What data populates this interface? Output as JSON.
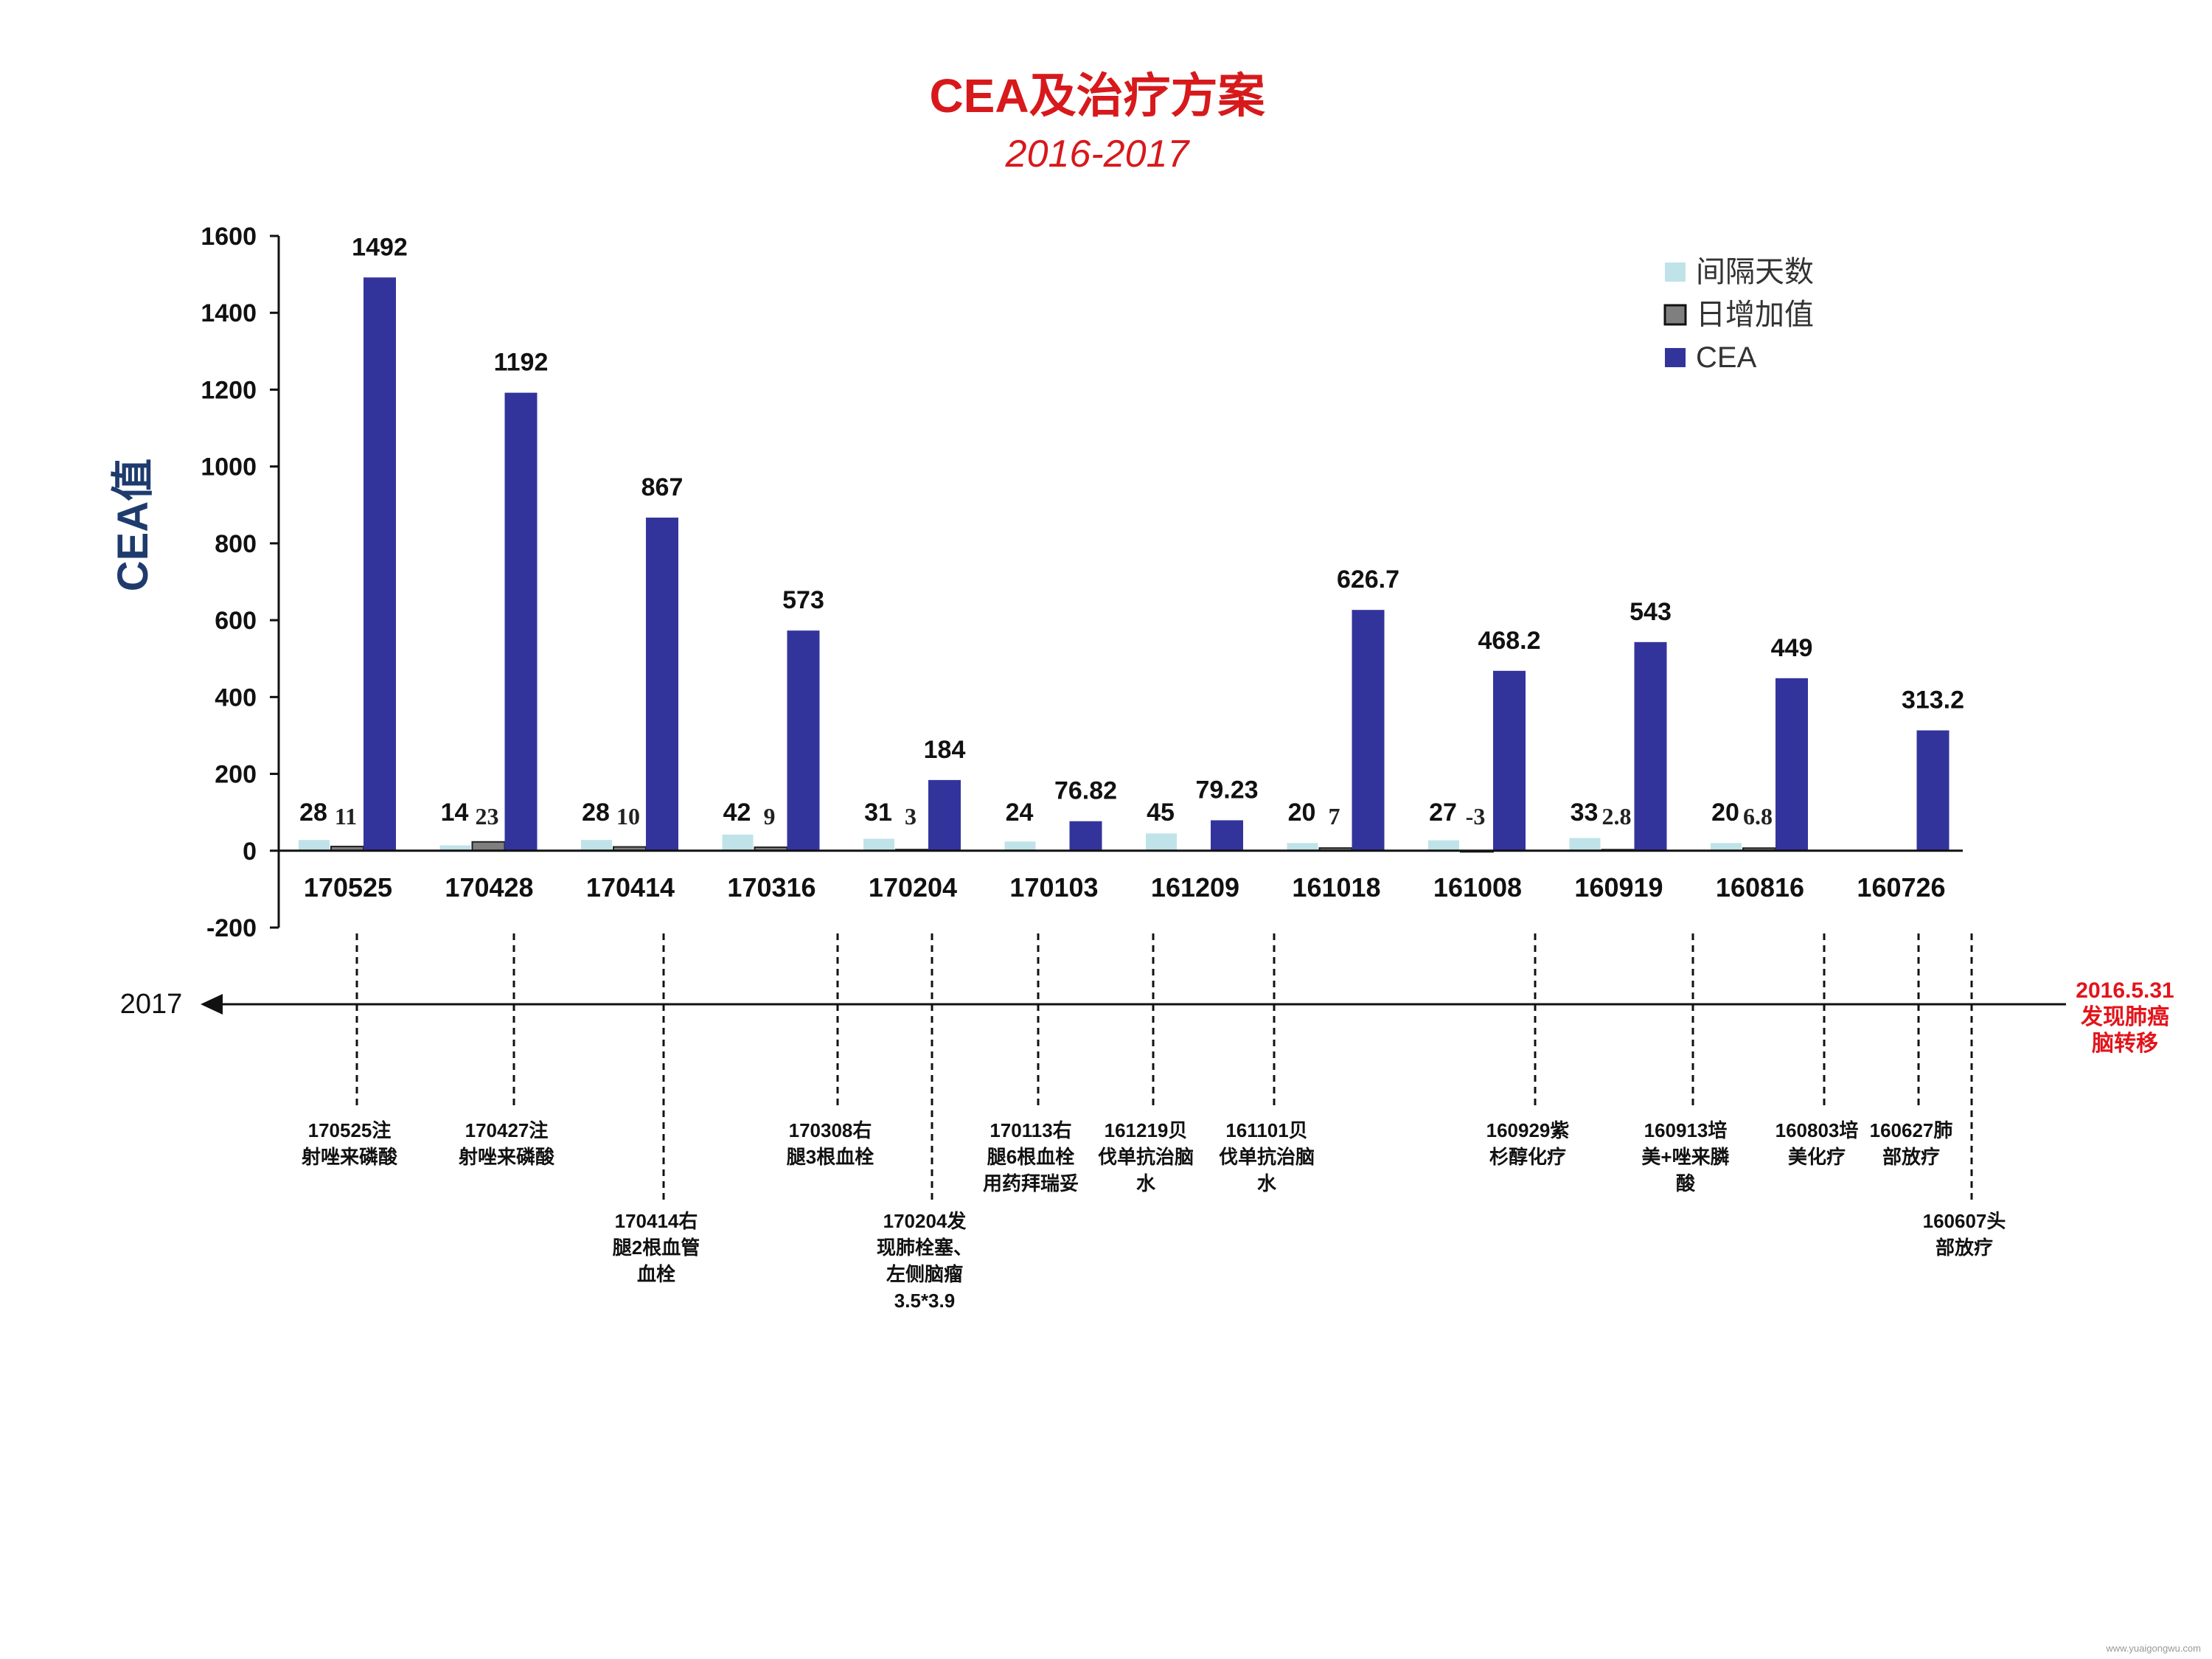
{
  "title": "CEA及治疗方案",
  "subtitle": "2016-2017",
  "colors": {
    "title": "#d7191c",
    "axis_label": "#1f3b6e",
    "interval": "#bfe3e8",
    "daily": "#7f7f7f",
    "cea": "#33349b",
    "timeline_start": "#e3141b"
  },
  "chart_data": {
    "type": "bar",
    "ylabel": "CEA值",
    "ylim": [
      -200,
      1600
    ],
    "yticks": [
      -200,
      0,
      200,
      400,
      600,
      800,
      1000,
      1200,
      1400,
      1600
    ],
    "grid": false,
    "legend_position": "top-right",
    "categories": [
      "170525",
      "170428",
      "170414",
      "170316",
      "170204",
      "170103",
      "161209",
      "161018",
      "161008",
      "160919",
      "160816",
      "160726"
    ],
    "series": [
      {
        "name": "间隔天数",
        "values": [
          28,
          14,
          28,
          42,
          31,
          24,
          45,
          20,
          27,
          33,
          20,
          null
        ],
        "labels": [
          "28",
          "14",
          "28",
          "42",
          "31",
          "24",
          "45",
          "20",
          "27",
          "33",
          "20",
          ""
        ]
      },
      {
        "name": "日增加值",
        "values": [
          11,
          23,
          10,
          9,
          3,
          0,
          0,
          7,
          -3,
          2.8,
          6.8,
          null
        ],
        "labels": [
          "11",
          "23",
          "10",
          "9",
          "3",
          "",
          "",
          "7",
          "-3",
          "2.8",
          "6.8",
          ""
        ]
      },
      {
        "name": "CEA",
        "values": [
          1492,
          1192,
          867,
          573,
          184,
          76.82,
          79.23,
          626.7,
          468.2,
          543,
          449,
          313.2
        ],
        "labels": [
          "1492",
          "1192",
          "867",
          "573",
          "184",
          "76.82",
          "79.23",
          "626.7",
          "468.2",
          "543",
          "449",
          "313.2"
        ]
      }
    ]
  },
  "timeline": {
    "end_label": "2017",
    "start_label": [
      "2016.5.31",
      "发现肺癌",
      "脑转移"
    ],
    "events": [
      {
        "lines": [
          "170525注",
          "射唑来磷酸"
        ],
        "row": "upper"
      },
      {
        "lines": [
          "170427注",
          "射唑来磷酸"
        ],
        "row": "upper"
      },
      {
        "lines": [
          "170414右",
          "腿2根血管",
          "血栓"
        ],
        "row": "lower"
      },
      {
        "lines": [
          "170308右",
          "腿3根血栓"
        ],
        "row": "upper"
      },
      {
        "lines": [
          "170204发",
          "现肺栓塞、",
          "左侧脑瘤",
          "3.5*3.9"
        ],
        "row": "lower"
      },
      {
        "lines": [
          "170113右",
          "腿6根血栓",
          "用药拜瑞妥"
        ],
        "row": "upper"
      },
      {
        "lines": [
          "161219贝",
          "伐单抗治脑",
          "水"
        ],
        "row": "upper"
      },
      {
        "lines": [
          "161101贝",
          "伐单抗治脑",
          "水"
        ],
        "row": "upper"
      },
      {
        "lines": [
          "160929紫",
          "杉醇化疗"
        ],
        "row": "upper"
      },
      {
        "lines": [
          "160913培",
          "美+唑来膦",
          "酸"
        ],
        "row": "upper"
      },
      {
        "lines": [
          "160803培",
          "美化疗"
        ],
        "row": "upper"
      },
      {
        "lines": [
          "160627肺",
          "部放疗"
        ],
        "row": "upper"
      },
      {
        "lines": [
          "160607头",
          "部放疗"
        ],
        "row": "lower"
      }
    ]
  },
  "watermark": "www.yuaigongwu.com"
}
